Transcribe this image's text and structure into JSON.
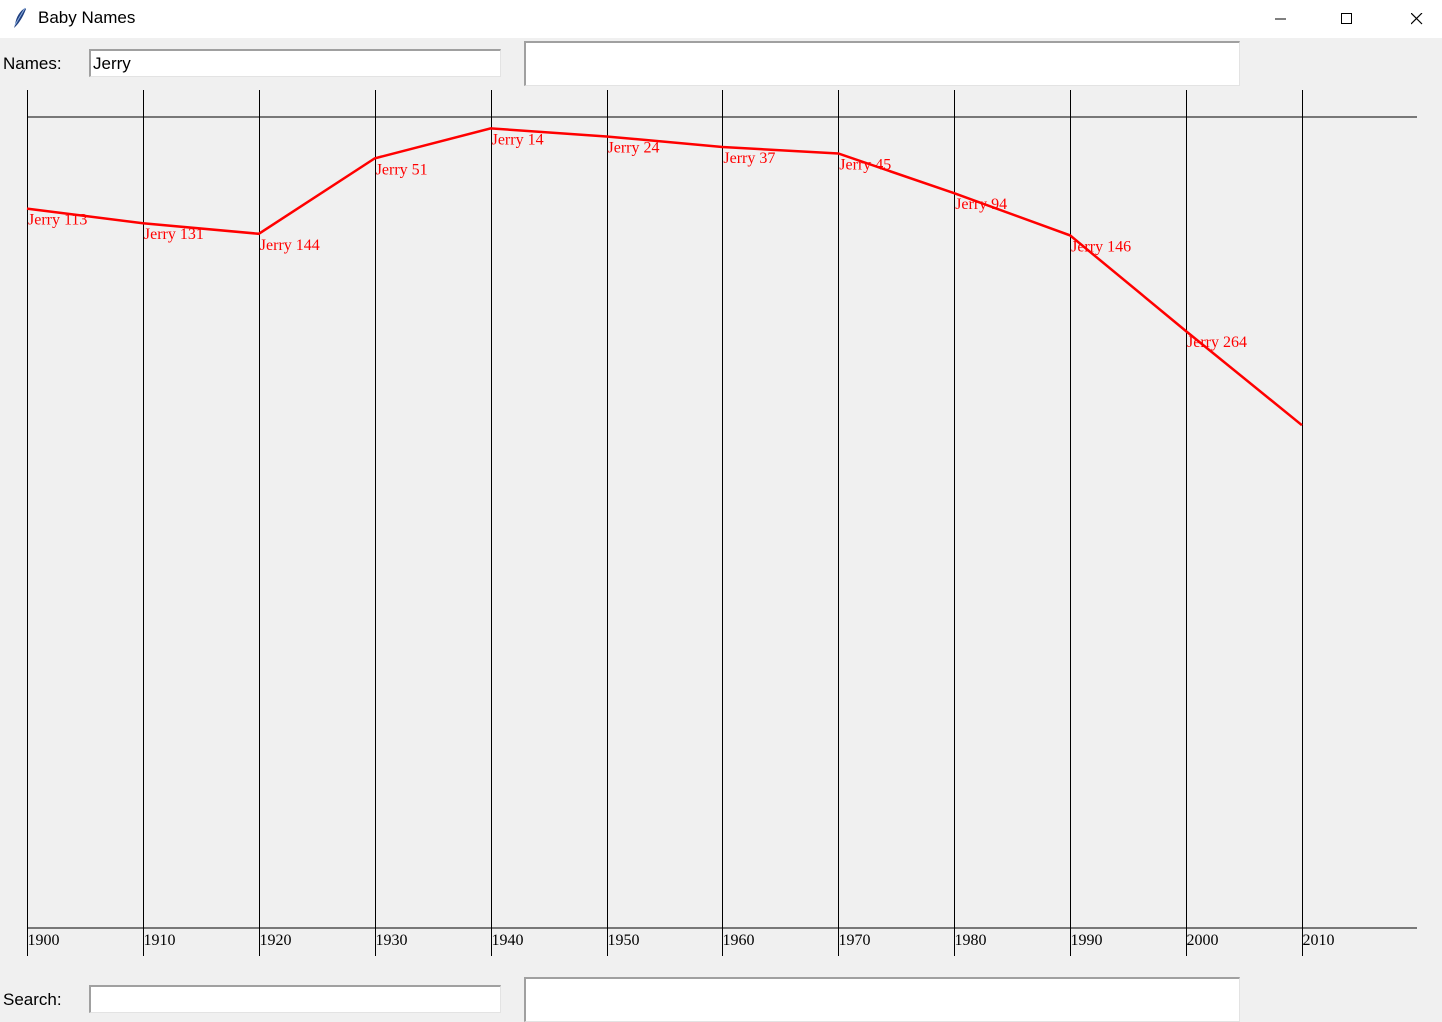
{
  "window": {
    "title": "Baby Names",
    "icon": "feather-icon"
  },
  "names_row": {
    "label": "Names:",
    "value": "Jerry"
  },
  "search_row": {
    "label": "Search:",
    "value": ""
  },
  "colors": {
    "series": "#ff0000",
    "grid": "#000000",
    "background": "#f0f0f0"
  },
  "chart_data": {
    "type": "line",
    "x": [
      1900,
      1910,
      1920,
      1930,
      1940,
      1950,
      1960,
      1970,
      1980,
      1990,
      2000,
      2010
    ],
    "tick_labels": [
      "1900",
      "1910",
      "1920",
      "1930",
      "1940",
      "1950",
      "1960",
      "1970",
      "1980",
      "1990",
      "2000",
      "2010"
    ],
    "series": [
      {
        "name": "Jerry",
        "values": [
          113,
          131,
          144,
          51,
          14,
          24,
          37,
          45,
          94,
          146,
          264,
          380
        ],
        "labels": [
          "Jerry 113",
          "Jerry 131",
          "Jerry 144",
          "Jerry 51",
          "Jerry 14",
          "Jerry 24",
          "Jerry 37",
          "Jerry 45",
          "Jerry 94",
          "Jerry 146",
          "Jerry 264",
          ""
        ]
      }
    ],
    "ylim": [
      0,
      1000
    ],
    "y_inverted": true,
    "grid": "vertical"
  }
}
